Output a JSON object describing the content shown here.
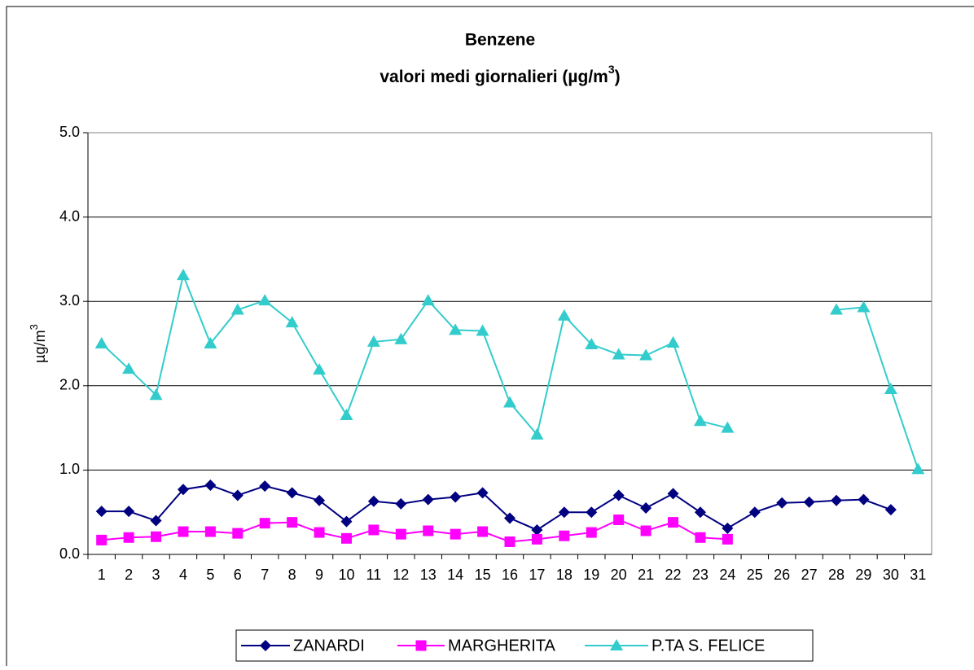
{
  "chart_data": {
    "type": "line",
    "title": "Benzene",
    "subtitle": [
      "valori medi giornalieri (µg/m",
      "3",
      ")"
    ],
    "y_label": [
      "µg/m",
      "3"
    ],
    "categories": [
      "1",
      "2",
      "3",
      "4",
      "5",
      "6",
      "7",
      "8",
      "9",
      "10",
      "11",
      "12",
      "13",
      "14",
      "15",
      "16",
      "17",
      "18",
      "19",
      "20",
      "21",
      "22",
      "23",
      "24",
      "25",
      "26",
      "27",
      "28",
      "29",
      "30",
      "31"
    ],
    "series": [
      {
        "name": "ZANARDI",
        "color": "#000080",
        "marker": "diamond",
        "values": [
          0.51,
          0.51,
          0.4,
          0.77,
          0.82,
          0.7,
          0.81,
          0.73,
          0.64,
          0.39,
          0.63,
          0.6,
          0.65,
          0.68,
          0.73,
          0.43,
          0.29,
          0.5,
          0.5,
          0.7,
          0.55,
          0.72,
          0.5,
          0.31,
          0.5,
          0.61,
          0.62,
          0.64,
          0.65,
          0.53,
          null
        ]
      },
      {
        "name": "MARGHERITA",
        "color": "#ff00ff",
        "marker": "square",
        "values": [
          0.17,
          0.2,
          0.21,
          0.27,
          0.27,
          0.25,
          0.37,
          0.38,
          0.26,
          0.19,
          0.29,
          0.24,
          0.28,
          0.24,
          0.27,
          0.15,
          0.18,
          0.22,
          0.26,
          0.41,
          0.28,
          0.38,
          0.2,
          0.18,
          null,
          null,
          null,
          null,
          null,
          null,
          null
        ]
      },
      {
        "name": "P.TA S. FELICE",
        "color": "#33cccc",
        "marker": "triangle",
        "values": [
          2.5,
          2.2,
          1.89,
          3.31,
          2.5,
          2.9,
          3.01,
          2.75,
          2.19,
          1.65,
          2.52,
          2.55,
          3.01,
          2.66,
          2.65,
          1.8,
          1.42,
          2.83,
          2.49,
          2.37,
          2.36,
          2.51,
          1.58,
          1.5,
          null,
          null,
          null,
          2.9,
          2.93,
          1.96,
          1.01
        ]
      }
    ],
    "ylim": [
      0,
      5
    ],
    "yticks": [
      {
        "value": 0,
        "label": "0.0"
      },
      {
        "value": 1,
        "label": "1.0"
      },
      {
        "value": 2,
        "label": "2.0"
      },
      {
        "value": 3,
        "label": "3.0"
      },
      {
        "value": 4,
        "label": "4.0"
      },
      {
        "value": 5,
        "label": "5.0"
      }
    ],
    "grid": true,
    "legend": "bottom"
  }
}
